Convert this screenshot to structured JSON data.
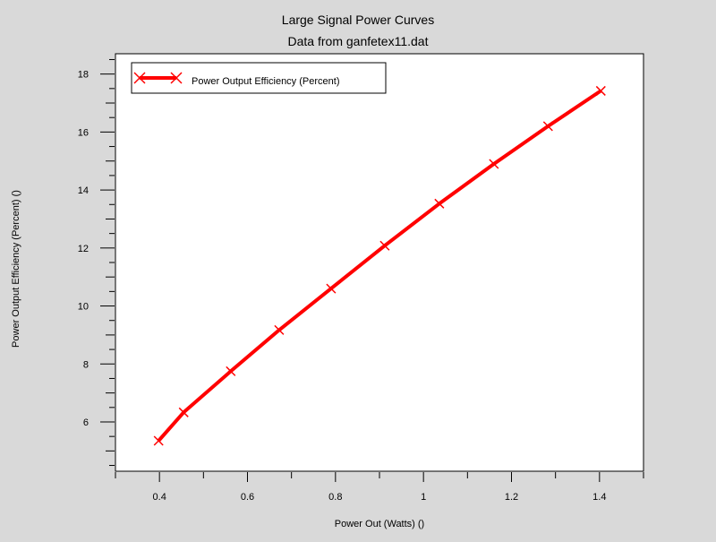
{
  "chart_data": {
    "type": "line",
    "title": "Large Signal Power Curves",
    "subtitle": "Data from ganfetex11.dat",
    "xlabel": "Power Out (Watts) ()",
    "ylabel": "Power Output Efficiency (Percent) ()",
    "xlim": [
      0.3,
      1.5
    ],
    "ylim": [
      4.3,
      18.7
    ],
    "xticks": [
      0.4,
      0.6,
      0.8,
      1,
      1.2,
      1.4
    ],
    "xtick_labels": [
      "0.4",
      "0.6",
      "0.8",
      "1",
      "1.2",
      "1.4"
    ],
    "yticks": [
      6,
      8,
      10,
      12,
      14,
      16,
      18
    ],
    "ytick_labels": [
      "6",
      "8",
      "10",
      "12",
      "14",
      "16",
      "18"
    ],
    "grid": false,
    "legend_position": "top-left",
    "series": [
      {
        "name": "Power Output Efficiency (Percent)",
        "color": "#ff0000",
        "marker": "x",
        "x": [
          0.398,
          0.455,
          0.562,
          0.672,
          0.79,
          0.912,
          1.036,
          1.16,
          1.283,
          1.403
        ],
        "y": [
          5.35,
          6.33,
          7.75,
          9.17,
          10.6,
          12.08,
          13.53,
          14.9,
          16.2,
          17.42
        ]
      }
    ]
  }
}
